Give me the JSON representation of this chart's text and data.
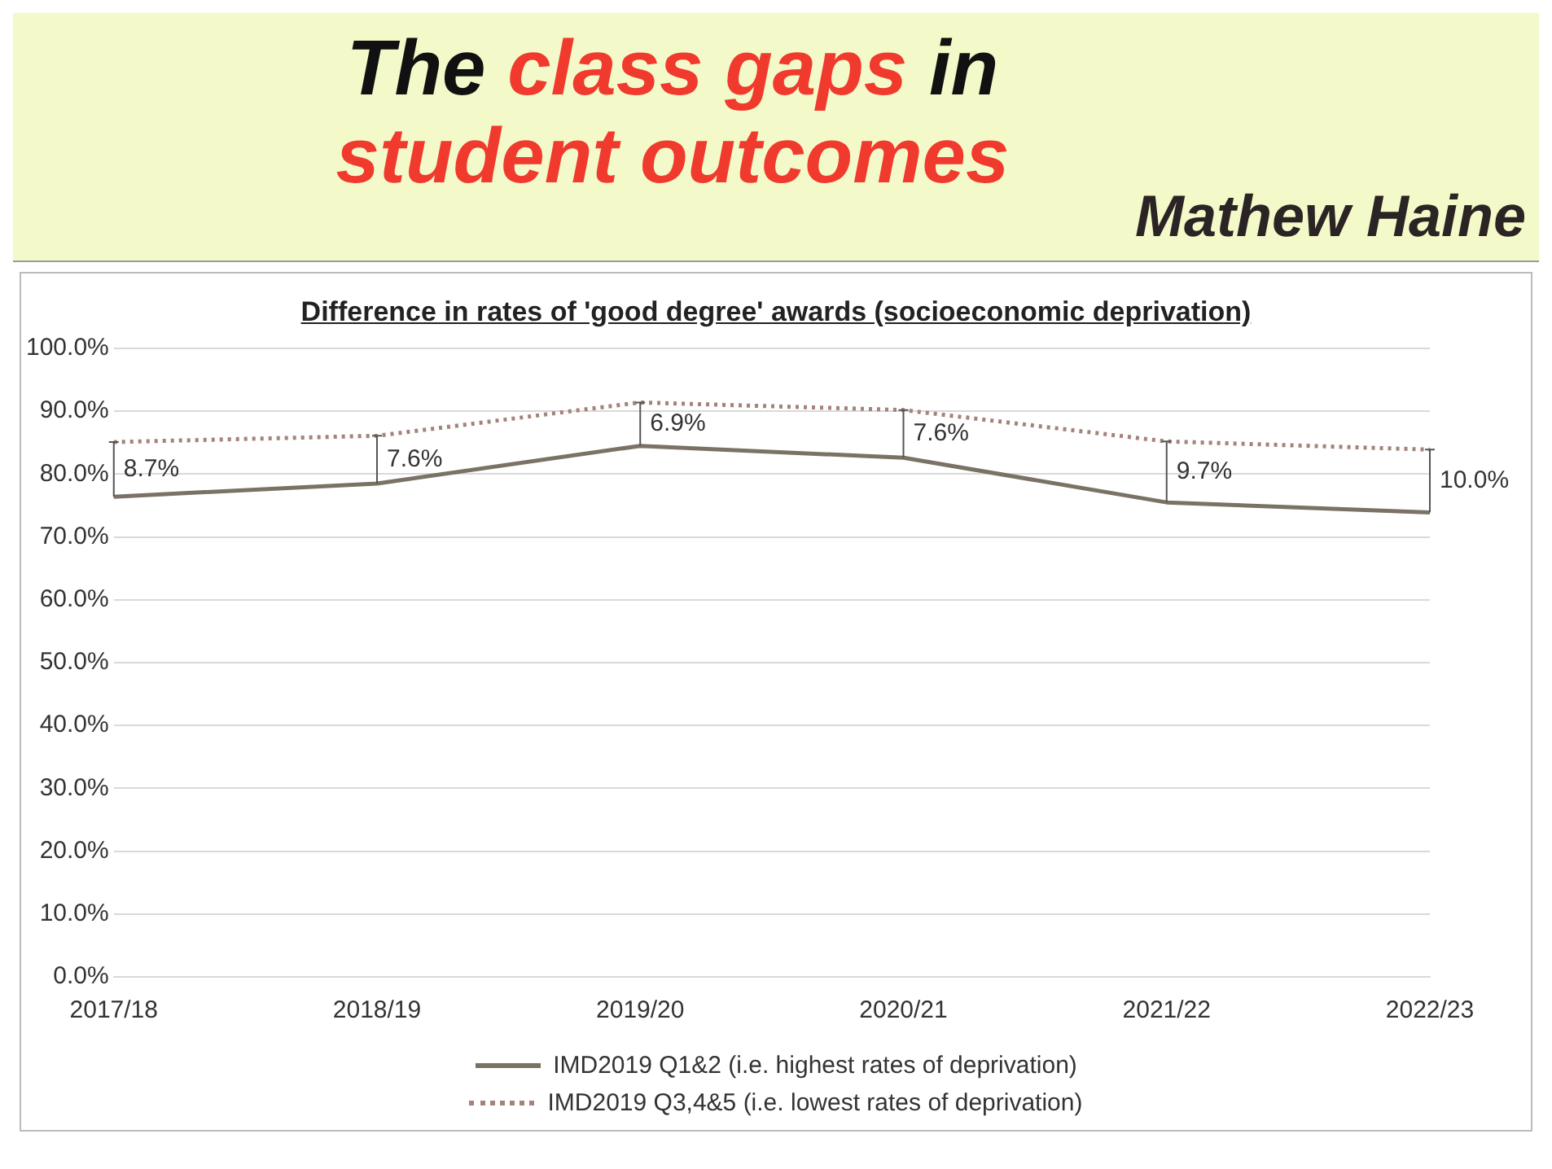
{
  "chart_data": {
    "type": "line",
    "title": "The class gaps in student outcomes",
    "subtitle": "Difference in rates of 'good degree' awards (socioeconomic deprivation)",
    "categories": [
      "2017/18",
      "2018/19",
      "2019/20",
      "2020/21",
      "2021/22",
      "2022/23"
    ],
    "series": [
      {
        "name": "IMD2019 Q1&2 (i.e. highest rates of deprivation)",
        "color": "#7a7265",
        "line_style": "solid",
        "values": [
          76.4,
          78.5,
          84.5,
          82.6,
          75.5,
          73.9
        ]
      },
      {
        "name": "IMD2019 Q3,4&5 (i.e. lowest rates of deprivation)",
        "color": "#a4837a",
        "line_style": "dotted",
        "values": [
          85.1,
          86.1,
          91.4,
          90.2,
          85.2,
          83.9
        ]
      }
    ],
    "ylim": [
      0,
      100
    ],
    "yticks": [
      {
        "value": 0,
        "label": "0.0%"
      },
      {
        "value": 10,
        "label": "10.0%"
      },
      {
        "value": 20,
        "label": "20.0%"
      },
      {
        "value": 30,
        "label": "30.0%"
      },
      {
        "value": 40,
        "label": "40.0%"
      },
      {
        "value": 50,
        "label": "50.0%"
      },
      {
        "value": 60,
        "label": "60.0%"
      },
      {
        "value": 70,
        "label": "70.0%"
      },
      {
        "value": 80,
        "label": "80.0%"
      },
      {
        "value": 90,
        "label": "90.0%"
      },
      {
        "value": 100,
        "label": "100.0%"
      }
    ],
    "grid": "y",
    "legend": "bottom",
    "marker": "none",
    "annotations": [
      "Mathew Haine",
      {
        "text": "8.7%",
        "x": "2017/18",
        "y": 85.1
      },
      {
        "text": "7.6%",
        "x": "2018/19",
        "y": 86.1
      },
      {
        "text": "6.9%",
        "x": "2019/20",
        "y": 91.4
      },
      {
        "text": "7.6%",
        "x": "2020/21",
        "y": 90.2
      },
      {
        "text": "9.7%",
        "x": "2021/22",
        "y": 85.2
      },
      {
        "text": "10.0%",
        "x": "2022/23",
        "y": 83.9
      }
    ]
  }
}
